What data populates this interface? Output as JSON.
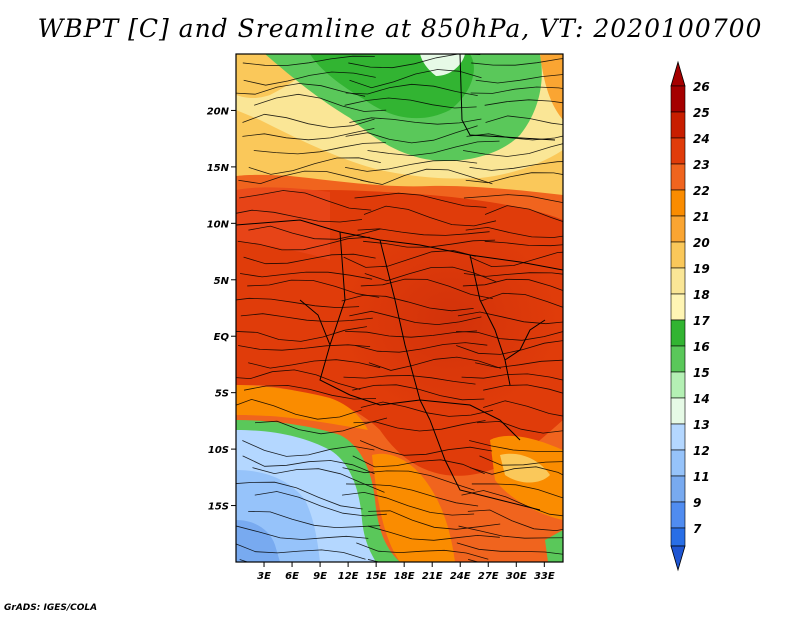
{
  "title": "WBPT [C] and Sreamline at 850hPa, VT: 2020100700",
  "credit": "GrADS: IGES/COLA",
  "map": {
    "lon_range": [
      0,
      35
    ],
    "lat_range": [
      -20,
      25
    ],
    "lat_ticks": [
      {
        "value": 20,
        "label": "20N"
      },
      {
        "value": 15,
        "label": "15N"
      },
      {
        "value": 10,
        "label": "10N"
      },
      {
        "value": 5,
        "label": "5N"
      },
      {
        "value": 0,
        "label": "EQ"
      },
      {
        "value": -5,
        "label": "5S"
      },
      {
        "value": -10,
        "label": "10S"
      },
      {
        "value": -15,
        "label": "15S"
      }
    ],
    "lon_ticks": [
      {
        "value": 3,
        "label": "3E"
      },
      {
        "value": 6,
        "label": "6E"
      },
      {
        "value": 9,
        "label": "9E"
      },
      {
        "value": 12,
        "label": "12E"
      },
      {
        "value": 15,
        "label": "15E"
      },
      {
        "value": 18,
        "label": "18E"
      },
      {
        "value": 21,
        "label": "21E"
      },
      {
        "value": 24,
        "label": "24E"
      },
      {
        "value": 27,
        "label": "27E"
      },
      {
        "value": 30,
        "label": "30E"
      },
      {
        "value": 33,
        "label": "33E"
      }
    ]
  },
  "colorbar": {
    "levels": [
      {
        "label": "26",
        "color": "#a50000"
      },
      {
        "label": "25",
        "color": "#c81e00"
      },
      {
        "label": "24",
        "color": "#e03c0a"
      },
      {
        "label": "23",
        "color": "#f0641e"
      },
      {
        "label": "22",
        "color": "#fa8c00"
      },
      {
        "label": "21",
        "color": "#faa532"
      },
      {
        "label": "20",
        "color": "#fac85a"
      },
      {
        "label": "19",
        "color": "#fae696"
      },
      {
        "label": "18",
        "color": "#fff5b4"
      },
      {
        "label": "17",
        "color": "#32b432"
      },
      {
        "label": "16",
        "color": "#5ac85a"
      },
      {
        "label": "15",
        "color": "#b4f0b4"
      },
      {
        "label": "14",
        "color": "#e6fae6"
      },
      {
        "label": "13",
        "color": "#b4d7ff"
      },
      {
        "label": "12",
        "color": "#96c3fa"
      },
      {
        "label": "11",
        "color": "#78aaf0"
      },
      {
        "label": "9",
        "color": "#508cf0"
      },
      {
        "label": "7",
        "color": "#286ee6"
      }
    ],
    "bottom_color": "#1e55d2"
  }
}
